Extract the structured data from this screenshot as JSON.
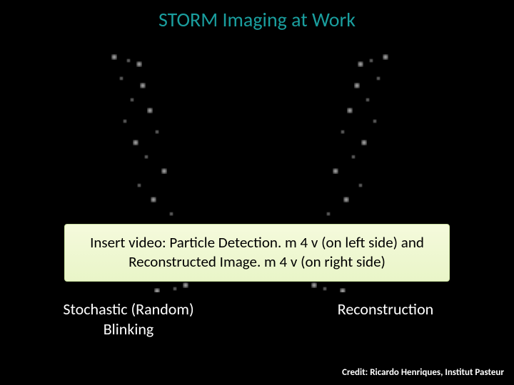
{
  "title": "STORM Imaging at Work",
  "callout_text": "Insert video: Particle Detection. m 4 v (on left side) and Reconstructed Image. m 4 v (on right side)",
  "caption_left_line1": "Stochastic (Random)",
  "caption_left_line2": "Blinking",
  "caption_right": "Reconstruction",
  "credit": "Credit: Ricardo Henriques, Institut Pasteur",
  "visual": {
    "background_color": "#000000",
    "title_color": "#1a9e9e",
    "title_fontsize": 28,
    "callout_bg_top": "#f5fadc",
    "callout_bg_bottom": "#e9f5c8",
    "callout_border": "#cbe0a0",
    "callout_fontsize": 21,
    "caption_color": "#ffffff",
    "caption_fontsize": 22,
    "credit_color": "#ffffff",
    "credit_fontsize": 13,
    "dot_color": "#ffffff",
    "dot_blur": 2,
    "left_dots": [
      [
        60,
        20,
        3
      ],
      [
        80,
        25,
        2
      ],
      [
        95,
        30,
        3
      ],
      [
        70,
        50,
        2
      ],
      [
        100,
        60,
        3
      ],
      [
        85,
        80,
        2
      ],
      [
        110,
        95,
        3
      ],
      [
        75,
        110,
        2
      ],
      [
        120,
        125,
        2
      ],
      [
        90,
        140,
        3
      ],
      [
        105,
        160,
        2
      ],
      [
        130,
        180,
        3
      ],
      [
        95,
        200,
        2
      ],
      [
        115,
        220,
        3
      ],
      [
        140,
        240,
        2
      ],
      [
        100,
        260,
        3
      ],
      [
        125,
        280,
        2
      ],
      [
        150,
        300,
        3
      ],
      [
        110,
        320,
        2
      ],
      [
        135,
        330,
        3
      ],
      [
        160,
        340,
        3
      ],
      [
        145,
        345,
        2
      ],
      [
        120,
        348,
        3
      ]
    ],
    "right_dots": [
      [
        140,
        20,
        3
      ],
      [
        120,
        25,
        2
      ],
      [
        105,
        30,
        3
      ],
      [
        130,
        50,
        2
      ],
      [
        100,
        60,
        3
      ],
      [
        115,
        80,
        2
      ],
      [
        90,
        95,
        3
      ],
      [
        125,
        110,
        2
      ],
      [
        80,
        125,
        2
      ],
      [
        110,
        140,
        3
      ],
      [
        95,
        160,
        2
      ],
      [
        70,
        180,
        3
      ],
      [
        105,
        200,
        2
      ],
      [
        85,
        220,
        3
      ],
      [
        60,
        240,
        2
      ],
      [
        100,
        260,
        3
      ],
      [
        75,
        280,
        2
      ],
      [
        50,
        300,
        3
      ],
      [
        90,
        320,
        2
      ],
      [
        65,
        330,
        3
      ],
      [
        40,
        340,
        3
      ],
      [
        55,
        345,
        2
      ],
      [
        80,
        348,
        3
      ]
    ]
  }
}
